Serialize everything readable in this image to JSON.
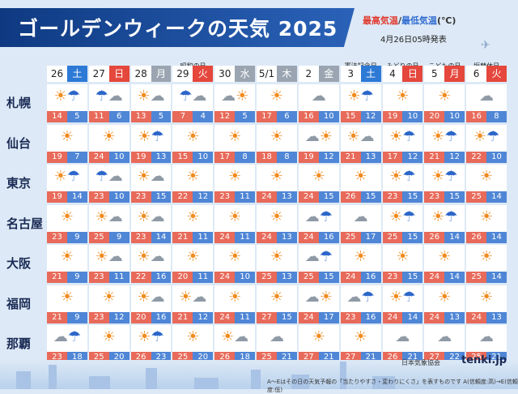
{
  "title": "ゴールデンウィークの天気 2025",
  "legend": {
    "high": "最高気温",
    "sep": "/",
    "low": "最低気温",
    "unit": "(℃)"
  },
  "issued": "4月26日05時発表",
  "days": [
    {
      "num": "26",
      "dow": "土",
      "type": "sat",
      "name": ""
    },
    {
      "num": "27",
      "dow": "日",
      "type": "sun",
      "name": ""
    },
    {
      "num": "28",
      "dow": "月",
      "type": "wk",
      "name": ""
    },
    {
      "num": "29",
      "dow": "火",
      "type": "hol",
      "name": "昭和の日"
    },
    {
      "num": "30",
      "dow": "水",
      "type": "wk",
      "name": ""
    },
    {
      "num": "5/1",
      "dow": "木",
      "type": "wk",
      "name": ""
    },
    {
      "num": "2",
      "dow": "金",
      "type": "wk",
      "name": ""
    },
    {
      "num": "3",
      "dow": "土",
      "type": "sat",
      "name": "憲法記念日"
    },
    {
      "num": "4",
      "dow": "日",
      "type": "sun",
      "name": "みどりの日"
    },
    {
      "num": "5",
      "dow": "月",
      "type": "hol",
      "name": "こどもの日"
    },
    {
      "num": "6",
      "dow": "火",
      "type": "hol",
      "name": "振替休日"
    }
  ],
  "cities": [
    {
      "name": "札幌",
      "cells": [
        {
          "icon": "sun-rain",
          "hi": "14",
          "lo": "5"
        },
        {
          "icon": "rain-cloud",
          "hi": "11",
          "lo": "6"
        },
        {
          "icon": "sun-cloud",
          "hi": "13",
          "lo": "5"
        },
        {
          "icon": "rain-cloud",
          "hi": "7",
          "lo": "4"
        },
        {
          "icon": "cloud-sun",
          "hi": "12",
          "lo": "5"
        },
        {
          "icon": "sun",
          "hi": "17",
          "lo": "6"
        },
        {
          "icon": "cloud",
          "hi": "16",
          "lo": "10"
        },
        {
          "icon": "sun-rain",
          "hi": "15",
          "lo": "12"
        },
        {
          "icon": "sun",
          "hi": "19",
          "lo": "10"
        },
        {
          "icon": "sun",
          "hi": "20",
          "lo": "10"
        },
        {
          "icon": "cloud",
          "hi": "16",
          "lo": "8"
        }
      ]
    },
    {
      "name": "仙台",
      "cells": [
        {
          "icon": "sun",
          "hi": "19",
          "lo": "7"
        },
        {
          "icon": "sun",
          "hi": "24",
          "lo": "10"
        },
        {
          "icon": "sun-rain",
          "hi": "19",
          "lo": "13"
        },
        {
          "icon": "sun",
          "hi": "15",
          "lo": "10"
        },
        {
          "icon": "sun",
          "hi": "17",
          "lo": "8"
        },
        {
          "icon": "sun",
          "hi": "18",
          "lo": "8"
        },
        {
          "icon": "cloud-sun",
          "hi": "19",
          "lo": "12"
        },
        {
          "icon": "sun-cloud",
          "hi": "21",
          "lo": "13"
        },
        {
          "icon": "sun-rain",
          "hi": "17",
          "lo": "12"
        },
        {
          "icon": "sun-rain",
          "hi": "21",
          "lo": "12"
        },
        {
          "icon": "sun-rain",
          "hi": "22",
          "lo": "10"
        }
      ]
    },
    {
      "name": "東京",
      "cells": [
        {
          "icon": "sun-rain",
          "hi": "19",
          "lo": "14"
        },
        {
          "icon": "rain-cloud",
          "hi": "23",
          "lo": "10"
        },
        {
          "icon": "sun-cloud",
          "hi": "23",
          "lo": "15"
        },
        {
          "icon": "sun",
          "hi": "22",
          "lo": "12"
        },
        {
          "icon": "sun",
          "hi": "23",
          "lo": "11"
        },
        {
          "icon": "sun",
          "hi": "24",
          "lo": "13"
        },
        {
          "icon": "sun",
          "hi": "24",
          "lo": "15"
        },
        {
          "icon": "sun",
          "hi": "26",
          "lo": "15"
        },
        {
          "icon": "sun-rain",
          "hi": "23",
          "lo": "15"
        },
        {
          "icon": "sun-rain",
          "hi": "23",
          "lo": "15"
        },
        {
          "icon": "sun",
          "hi": "25",
          "lo": "14"
        }
      ]
    },
    {
      "name": "名古屋",
      "cells": [
        {
          "icon": "sun",
          "hi": "23",
          "lo": "9"
        },
        {
          "icon": "sun-cloud",
          "hi": "25",
          "lo": "9"
        },
        {
          "icon": "sun-cloud",
          "hi": "23",
          "lo": "14"
        },
        {
          "icon": "sun",
          "hi": "21",
          "lo": "11"
        },
        {
          "icon": "sun",
          "hi": "24",
          "lo": "11"
        },
        {
          "icon": "sun",
          "hi": "24",
          "lo": "13"
        },
        {
          "icon": "cloud-rain",
          "hi": "24",
          "lo": "16"
        },
        {
          "icon": "cloud",
          "hi": "25",
          "lo": "17"
        },
        {
          "icon": "sun-rain",
          "hi": "25",
          "lo": "15"
        },
        {
          "icon": "sun-rain",
          "hi": "26",
          "lo": "14"
        },
        {
          "icon": "sun",
          "hi": "26",
          "lo": "14"
        }
      ]
    },
    {
      "name": "大阪",
      "cells": [
        {
          "icon": "sun",
          "hi": "21",
          "lo": "9"
        },
        {
          "icon": "sun-cloud",
          "hi": "23",
          "lo": "11"
        },
        {
          "icon": "sun-cloud",
          "hi": "22",
          "lo": "16"
        },
        {
          "icon": "sun",
          "hi": "20",
          "lo": "11"
        },
        {
          "icon": "sun",
          "hi": "24",
          "lo": "10"
        },
        {
          "icon": "sun",
          "hi": "25",
          "lo": "13"
        },
        {
          "icon": "cloud-rain",
          "hi": "25",
          "lo": "15"
        },
        {
          "icon": "sun",
          "hi": "24",
          "lo": "16"
        },
        {
          "icon": "sun",
          "hi": "23",
          "lo": "15"
        },
        {
          "icon": "sun",
          "hi": "24",
          "lo": "14"
        },
        {
          "icon": "sun",
          "hi": "25",
          "lo": "14"
        }
      ]
    },
    {
      "name": "福岡",
      "cells": [
        {
          "icon": "sun",
          "hi": "21",
          "lo": "9"
        },
        {
          "icon": "sun",
          "hi": "23",
          "lo": "12"
        },
        {
          "icon": "sun-cloud",
          "hi": "20",
          "lo": "16"
        },
        {
          "icon": "sun-cloud",
          "hi": "21",
          "lo": "12"
        },
        {
          "icon": "sun",
          "hi": "24",
          "lo": "11"
        },
        {
          "icon": "sun",
          "hi": "27",
          "lo": "15"
        },
        {
          "icon": "cloud-sun",
          "hi": "24",
          "lo": "17"
        },
        {
          "icon": "cloud-rain",
          "hi": "23",
          "lo": "16"
        },
        {
          "icon": "sun-rain",
          "hi": "24",
          "lo": "14"
        },
        {
          "icon": "sun",
          "hi": "24",
          "lo": "13"
        },
        {
          "icon": "sun",
          "hi": "24",
          "lo": "13"
        }
      ]
    },
    {
      "name": "那覇",
      "cells": [
        {
          "icon": "cloud-rain",
          "hi": "23",
          "lo": "18"
        },
        {
          "icon": "sun",
          "hi": "25",
          "lo": "20"
        },
        {
          "icon": "sun-rain",
          "hi": "26",
          "lo": "23"
        },
        {
          "icon": "sun",
          "hi": "25",
          "lo": "20"
        },
        {
          "icon": "sun-cloud",
          "hi": "26",
          "lo": "18"
        },
        {
          "icon": "cloud",
          "hi": "25",
          "lo": "21"
        },
        {
          "icon": "sun",
          "hi": "27",
          "lo": "21"
        },
        {
          "icon": "sun",
          "hi": "27",
          "lo": "21"
        },
        {
          "icon": "cloud",
          "hi": "26",
          "lo": "21"
        },
        {
          "icon": "cloud",
          "hi": "27",
          "lo": "22"
        },
        {
          "icon": "cloud",
          "hi": "25",
          "lo": "21"
        }
      ]
    }
  ],
  "footer": {
    "assoc": "日本気象協会",
    "logo": "tenki.jp",
    "note": "A～Eはその日の天気予報の「当たりやすさ・変わりにくさ」を表すものです A(信頼度:高)→E(信頼度:低)"
  }
}
